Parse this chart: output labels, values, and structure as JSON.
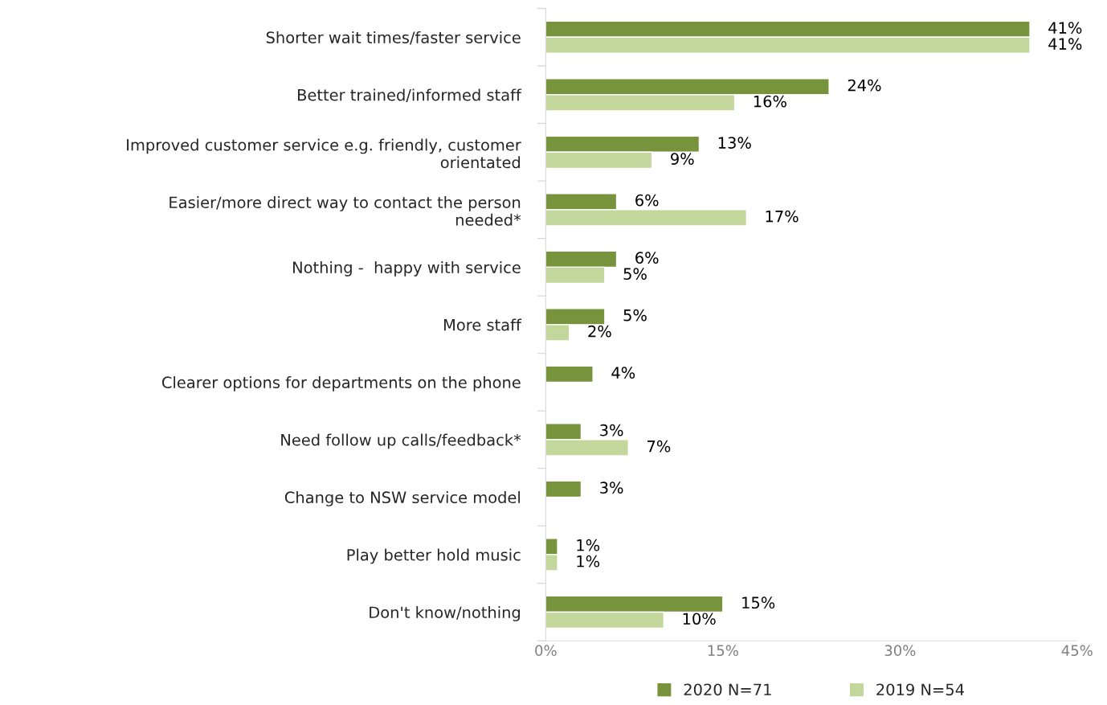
{
  "chart_data": {
    "type": "bar",
    "orientation": "horizontal",
    "categories": [
      "Shorter wait times/faster service",
      "Better trained/informed staff",
      "Improved customer service e.g. friendly, customer\norientated",
      "Easier/more direct way to contact the person\nneeded*",
      "Nothing -  happy with service",
      "More staff",
      "Clearer options for departments on the phone",
      "Need follow up calls/feedback*",
      "Change to NSW service model",
      "Play better hold music",
      "Don't know/nothing"
    ],
    "series": [
      {
        "name": "2020 N=71",
        "color": "#77933c",
        "values": [
          41,
          24,
          13,
          6,
          6,
          5,
          4,
          3,
          3,
          1,
          15
        ],
        "value_labels": [
          "41%",
          "24%",
          "13%",
          "6%",
          "6%",
          "5%",
          "4%",
          "3%",
          "3%",
          "1%",
          "15%"
        ]
      },
      {
        "name": "2019 N=54",
        "color": "#c3d69b",
        "values": [
          41,
          16,
          9,
          17,
          5,
          2,
          null,
          7,
          null,
          1,
          10
        ],
        "value_labels": [
          "41%",
          "16%",
          "9%",
          "17%",
          "5%",
          "2%",
          null,
          "7%",
          null,
          "1%",
          "10%"
        ]
      }
    ],
    "xlim": [
      0,
      45
    ],
    "xticks": [
      {
        "value": 0,
        "label": "0%"
      },
      {
        "value": 15,
        "label": "15%"
      },
      {
        "value": 30,
        "label": "30%"
      },
      {
        "value": 45,
        "label": "45%"
      }
    ],
    "grid": false,
    "legend": "bottom"
  }
}
